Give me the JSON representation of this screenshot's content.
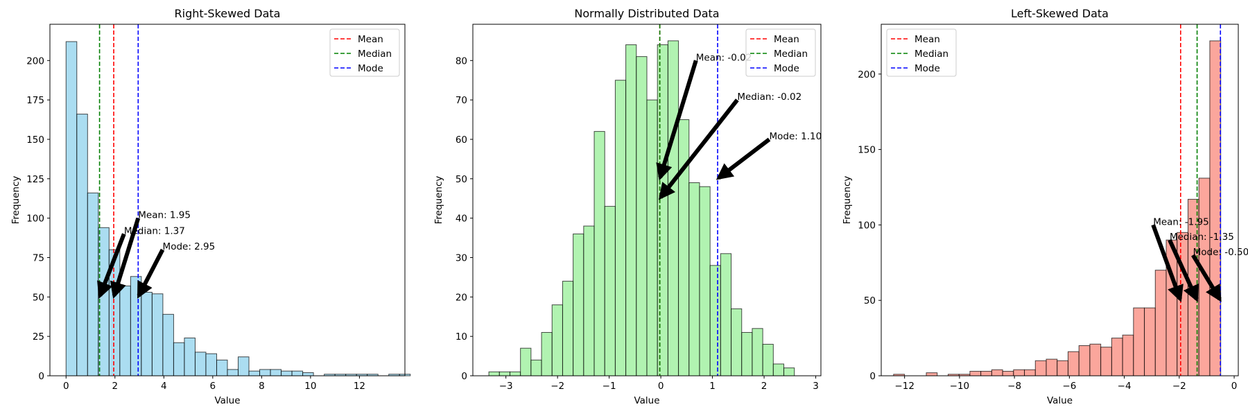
{
  "chart_data": [
    {
      "type": "bar",
      "title": "Right-Skewed Data",
      "xlabel": "Value",
      "ylabel": "Frequency",
      "xlim": [
        -0.66,
        13.86
      ],
      "ylim": [
        0,
        223
      ],
      "xticks": [
        0,
        2,
        4,
        6,
        8,
        10,
        12
      ],
      "yticks": [
        0,
        25,
        50,
        75,
        100,
        125,
        150,
        175,
        200
      ],
      "bin_start": 0.0,
      "bin_width": 0.44,
      "counts": [
        212,
        166,
        116,
        94,
        80,
        57,
        63,
        53,
        52,
        39,
        21,
        24,
        15,
        14,
        10,
        4,
        12,
        3,
        4,
        4,
        3,
        3,
        2,
        0,
        1,
        1,
        1,
        1,
        1,
        0,
        1,
        1
      ],
      "bar_color": "#87ceeb",
      "lines": [
        {
          "name": "Mean",
          "value": 1.95,
          "color": "#ff0000"
        },
        {
          "name": "Median",
          "value": 1.37,
          "color": "#008000"
        },
        {
          "name": "Mode",
          "value": 2.95,
          "color": "#0000ff"
        }
      ],
      "annotations": [
        {
          "text": "Mean: 1.95",
          "text_x": 2.95,
          "text_y": 100,
          "arrow_x": 1.95,
          "arrow_y": 50
        },
        {
          "text": "Median: 1.37",
          "text_x": 2.37,
          "text_y": 90,
          "arrow_x": 1.37,
          "arrow_y": 50
        },
        {
          "text": "Mode: 2.95",
          "text_x": 3.95,
          "text_y": 80,
          "arrow_x": 2.95,
          "arrow_y": 50
        }
      ],
      "legend_loc": "upper-right"
    },
    {
      "type": "bar",
      "title": "Normally Distributed Data",
      "xlabel": "Value",
      "ylabel": "Frequency",
      "xlim": [
        -3.64,
        3.1
      ],
      "ylim": [
        0,
        89.2
      ],
      "xticks": [
        -3,
        -2,
        -1,
        0,
        1,
        2,
        3
      ],
      "yticks": [
        0,
        10,
        20,
        30,
        40,
        50,
        60,
        70,
        80
      ],
      "bin_start": -3.33,
      "bin_width": 0.204,
      "counts": [
        1,
        1,
        1,
        7,
        4,
        11,
        18,
        24,
        36,
        38,
        62,
        43,
        75,
        84,
        81,
        70,
        84,
        85,
        65,
        49,
        48,
        28,
        31,
        17,
        11,
        12,
        8,
        3,
        2,
        0
      ],
      "bar_color": "#90ee90",
      "lines": [
        {
          "name": "Mean",
          "value": -0.02,
          "color": "#ff0000"
        },
        {
          "name": "Median",
          "value": -0.02,
          "color": "#008000"
        },
        {
          "name": "Mode",
          "value": 1.1,
          "color": "#0000ff"
        }
      ],
      "annotations": [
        {
          "text": "Mean: -0.02",
          "text_x": 0.68,
          "text_y": 80,
          "arrow_x": -0.02,
          "arrow_y": 50
        },
        {
          "text": "Median: -0.02",
          "text_x": 1.48,
          "text_y": 70,
          "arrow_x": -0.02,
          "arrow_y": 45
        },
        {
          "text": "Mode: 1.10",
          "text_x": 2.1,
          "text_y": 60,
          "arrow_x": 1.1,
          "arrow_y": 50
        }
      ],
      "legend_loc": "upper-right"
    },
    {
      "type": "bar",
      "title": "Left-Skewed Data",
      "xlabel": "Value",
      "ylabel": "Frequency",
      "xlim": [
        -12.85,
        0.15
      ],
      "ylim": [
        0,
        233
      ],
      "xticks": [
        -12,
        -10,
        -8,
        -6,
        -4,
        -2,
        0
      ],
      "yticks": [
        0,
        50,
        100,
        150,
        200
      ],
      "bin_start": -12.4,
      "bin_width": 0.397,
      "counts": [
        1,
        0,
        0,
        2,
        0,
        1,
        1,
        3,
        3,
        4,
        3,
        4,
        4,
        10,
        11,
        10,
        16,
        20,
        21,
        19,
        25,
        27,
        45,
        45,
        70,
        90,
        95,
        117,
        131,
        222
      ],
      "bar_color": "#fa8072",
      "lines": [
        {
          "name": "Mean",
          "value": -1.95,
          "color": "#ff0000"
        },
        {
          "name": "Median",
          "value": -1.35,
          "color": "#008000"
        },
        {
          "name": "Mode",
          "value": -0.5,
          "color": "#0000ff"
        }
      ],
      "annotations": [
        {
          "text": "Mean: -1.95",
          "text_x": -2.95,
          "text_y": 100,
          "arrow_x": -1.95,
          "arrow_y": 50
        },
        {
          "text": "Median: -1.35",
          "text_x": -2.35,
          "text_y": 90,
          "arrow_x": -1.35,
          "arrow_y": 50
        },
        {
          "text": "Mode: -0.50",
          "text_x": -1.5,
          "text_y": 80,
          "arrow_x": -0.5,
          "arrow_y": 50
        }
      ],
      "legend_loc": "upper-left"
    }
  ]
}
